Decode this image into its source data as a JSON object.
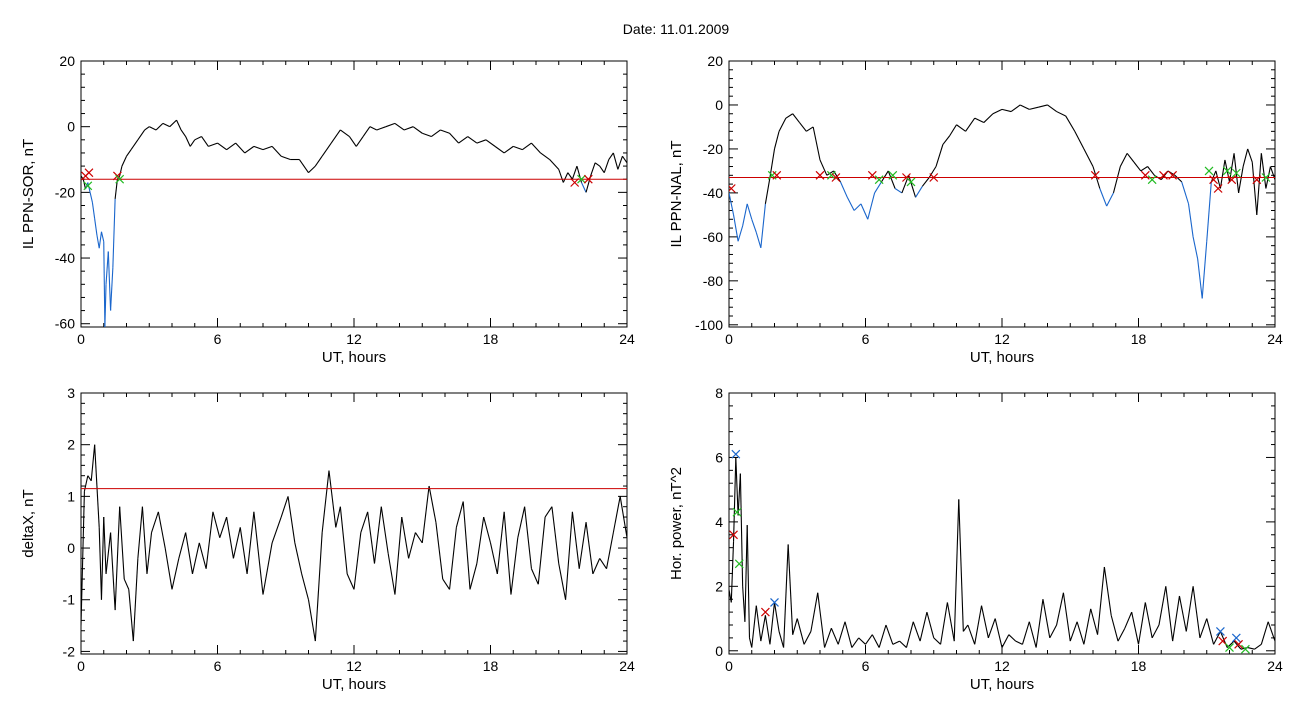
{
  "title": "Date:  11.01.2009",
  "colors": {
    "trace": "#000000",
    "threshold": "#cc0000",
    "negative_segment": "#1a66cc",
    "marker_red": "#cc0000",
    "marker_green": "#22bb22",
    "marker_blue": "#1a66cc"
  },
  "chart_data": [
    {
      "type": "line",
      "xlabel": "UT, hours",
      "ylabel": "IL PPN-SOR, nT",
      "xlim": [
        0,
        24
      ],
      "ylim": [
        -61,
        20
      ],
      "xticks": [
        0,
        6,
        12,
        18,
        24
      ],
      "yticks": [
        -60,
        -40,
        -20,
        0,
        20
      ],
      "threshold": -16,
      "series": [
        {
          "x": [
            0,
            0.1,
            0.2,
            0.3,
            0.4,
            0.5,
            0.6,
            0.7,
            0.8,
            0.9,
            1.0,
            1.05,
            1.1,
            1.2,
            1.3,
            1.4,
            1.5,
            1.6,
            1.7,
            1.8,
            2.0,
            2.2,
            2.5,
            2.8,
            3.0,
            3.3,
            3.6,
            3.9,
            4.2,
            4.4,
            4.6,
            4.8,
            5.0,
            5.3,
            5.6,
            6.0,
            6.4,
            6.8,
            7.2,
            7.6,
            8.0,
            8.4,
            8.8,
            9.2,
            9.6,
            10.0,
            10.3,
            10.6,
            11.0,
            11.4,
            11.8,
            12.1,
            12.4,
            12.7,
            13.0,
            13.4,
            13.8,
            14.2,
            14.6,
            15.0,
            15.4,
            15.8,
            16.2,
            16.6,
            17.0,
            17.4,
            17.8,
            18.2,
            18.6,
            19.0,
            19.4,
            19.8,
            20.2,
            20.6,
            21.0,
            21.2,
            21.4,
            21.6,
            21.8,
            22.0,
            22.2,
            22.4,
            22.6,
            22.8,
            23.0,
            23.2,
            23.4,
            23.6,
            23.8,
            24.0
          ],
          "y": [
            -15,
            -16,
            -19,
            -17,
            -20,
            -23,
            -28,
            -33,
            -37,
            -32,
            -35,
            -61,
            -48,
            -38,
            -56,
            -43,
            -22,
            -16,
            -15,
            -12,
            -9,
            -7,
            -4,
            -1,
            0,
            -1,
            1,
            0,
            2,
            -1,
            -3,
            -6,
            -4,
            -3,
            -6,
            -5,
            -7,
            -5,
            -8,
            -6,
            -7,
            -6,
            -9,
            -10,
            -10,
            -14,
            -12,
            -9,
            -5,
            -1,
            -3,
            -6,
            -3,
            0,
            -1,
            0,
            1,
            -1,
            0,
            -2,
            -3,
            -1,
            -2,
            -5,
            -3,
            -5,
            -4,
            -6,
            -8,
            -6,
            -7,
            -5,
            -8,
            -10,
            -13,
            -17,
            -14,
            -16,
            -12,
            -17,
            -20,
            -15,
            -11,
            -12,
            -14,
            -10,
            -8,
            -13,
            -9,
            -11
          ]
        }
      ],
      "markers": [
        {
          "x": 0.2,
          "y": -15,
          "color": "red"
        },
        {
          "x": 0.35,
          "y": -14,
          "color": "red"
        },
        {
          "x": 0.3,
          "y": -18,
          "color": "green"
        },
        {
          "x": 1.6,
          "y": -15,
          "color": "red"
        },
        {
          "x": 1.7,
          "y": -16,
          "color": "green"
        },
        {
          "x": 21.7,
          "y": -17,
          "color": "red"
        },
        {
          "x": 22.0,
          "y": -16,
          "color": "green"
        },
        {
          "x": 22.3,
          "y": -16,
          "color": "red"
        }
      ]
    },
    {
      "type": "line",
      "xlabel": "UT, hours",
      "ylabel": "IL PPN-NAL, nT",
      "xlim": [
        0,
        24
      ],
      "ylim": [
        -101,
        20
      ],
      "xticks": [
        0,
        6,
        12,
        18,
        24
      ],
      "yticks": [
        -100,
        -80,
        -60,
        -40,
        -20,
        0,
        20
      ],
      "threshold": -33,
      "series": [
        {
          "x": [
            0,
            0.2,
            0.4,
            0.6,
            0.8,
            1.0,
            1.2,
            1.4,
            1.6,
            1.8,
            2.0,
            2.2,
            2.5,
            2.8,
            3.1,
            3.4,
            3.7,
            4.0,
            4.3,
            4.6,
            4.9,
            5.2,
            5.5,
            5.8,
            6.1,
            6.4,
            6.7,
            7.0,
            7.3,
            7.6,
            7.9,
            8.2,
            8.5,
            8.8,
            9.1,
            9.4,
            9.7,
            10.0,
            10.4,
            10.8,
            11.2,
            11.6,
            12.0,
            12.4,
            12.8,
            13.2,
            13.6,
            14.0,
            14.4,
            14.8,
            15.2,
            15.6,
            16.0,
            16.3,
            16.6,
            16.9,
            17.2,
            17.5,
            17.8,
            18.1,
            18.4,
            18.7,
            19.0,
            19.3,
            19.6,
            19.9,
            20.2,
            20.4,
            20.6,
            20.8,
            21.0,
            21.2,
            21.4,
            21.6,
            21.8,
            22.0,
            22.2,
            22.4,
            22.6,
            22.8,
            23.0,
            23.2,
            23.4,
            23.6,
            23.8,
            24.0
          ],
          "y": [
            -40,
            -50,
            -62,
            -55,
            -45,
            -52,
            -58,
            -65,
            -45,
            -33,
            -20,
            -12,
            -6,
            -4,
            -8,
            -12,
            -10,
            -25,
            -32,
            -30,
            -35,
            -42,
            -48,
            -45,
            -52,
            -40,
            -35,
            -30,
            -38,
            -40,
            -32,
            -42,
            -37,
            -33,
            -28,
            -18,
            -14,
            -9,
            -12,
            -6,
            -8,
            -4,
            -2,
            -3,
            0,
            -2,
            -1,
            0,
            -3,
            -5,
            -12,
            -20,
            -28,
            -38,
            -46,
            -40,
            -28,
            -22,
            -26,
            -30,
            -28,
            -32,
            -34,
            -30,
            -32,
            -35,
            -45,
            -60,
            -70,
            -88,
            -62,
            -35,
            -30,
            -38,
            -25,
            -35,
            -22,
            -40,
            -28,
            -20,
            -26,
            -50,
            -22,
            -38,
            -28,
            -34
          ]
        }
      ],
      "markers": [
        {
          "x": 0.1,
          "y": -38,
          "color": "red"
        },
        {
          "x": 1.9,
          "y": -32,
          "color": "green"
        },
        {
          "x": 2.1,
          "y": -32,
          "color": "red"
        },
        {
          "x": 4.0,
          "y": -32,
          "color": "red"
        },
        {
          "x": 4.5,
          "y": -32,
          "color": "green"
        },
        {
          "x": 4.7,
          "y": -33,
          "color": "red"
        },
        {
          "x": 6.3,
          "y": -32,
          "color": "red"
        },
        {
          "x": 6.6,
          "y": -34,
          "color": "green"
        },
        {
          "x": 7.2,
          "y": -32,
          "color": "green"
        },
        {
          "x": 7.8,
          "y": -33,
          "color": "red"
        },
        {
          "x": 8.0,
          "y": -35,
          "color": "green"
        },
        {
          "x": 9.0,
          "y": -33,
          "color": "red"
        },
        {
          "x": 16.1,
          "y": -32,
          "color": "red"
        },
        {
          "x": 18.3,
          "y": -32,
          "color": "red"
        },
        {
          "x": 18.6,
          "y": -34,
          "color": "green"
        },
        {
          "x": 19.1,
          "y": -32,
          "color": "red"
        },
        {
          "x": 19.5,
          "y": -32,
          "color": "red"
        },
        {
          "x": 21.1,
          "y": -30,
          "color": "green"
        },
        {
          "x": 21.3,
          "y": -34,
          "color": "red"
        },
        {
          "x": 21.5,
          "y": -38,
          "color": "red"
        },
        {
          "x": 21.9,
          "y": -30,
          "color": "green"
        },
        {
          "x": 22.1,
          "y": -34,
          "color": "red"
        },
        {
          "x": 22.3,
          "y": -31,
          "color": "green"
        },
        {
          "x": 23.2,
          "y": -34,
          "color": "red"
        },
        {
          "x": 23.6,
          "y": -33,
          "color": "green"
        }
      ]
    },
    {
      "type": "line",
      "xlabel": "UT, hours",
      "ylabel": "deltaX, nT",
      "xlim": [
        0,
        24
      ],
      "ylim": [
        -2.05,
        3
      ],
      "xticks": [
        0,
        6,
        12,
        18,
        24
      ],
      "yticks": [
        -2,
        -1,
        0,
        1,
        2,
        3
      ],
      "threshold": 1.15,
      "series": [
        {
          "x": [
            0,
            0.15,
            0.3,
            0.45,
            0.6,
            0.8,
            0.9,
            1.0,
            1.1,
            1.3,
            1.5,
            1.7,
            1.9,
            2.1,
            2.3,
            2.5,
            2.7,
            2.9,
            3.1,
            3.4,
            3.7,
            4.0,
            4.3,
            4.6,
            4.9,
            5.2,
            5.5,
            5.8,
            6.1,
            6.4,
            6.7,
            7.0,
            7.3,
            7.6,
            8.0,
            8.4,
            8.8,
            9.1,
            9.4,
            9.7,
            10.0,
            10.3,
            10.6,
            10.9,
            11.2,
            11.4,
            11.7,
            12.0,
            12.3,
            12.6,
            12.9,
            13.2,
            13.5,
            13.8,
            14.1,
            14.4,
            14.7,
            15.0,
            15.3,
            15.6,
            15.9,
            16.2,
            16.5,
            16.8,
            17.1,
            17.4,
            17.7,
            18.0,
            18.3,
            18.6,
            18.9,
            19.2,
            19.5,
            19.8,
            20.1,
            20.4,
            20.7,
            21.0,
            21.3,
            21.6,
            21.9,
            22.2,
            22.5,
            22.8,
            23.1,
            23.4,
            23.7,
            24.0
          ],
          "y": [
            -1.5,
            1.1,
            1.4,
            1.3,
            2.0,
            0.4,
            -1.0,
            0.6,
            -0.5,
            0.3,
            -1.2,
            0.8,
            -0.6,
            -0.8,
            -1.8,
            -0.2,
            0.8,
            -0.5,
            0.3,
            0.7,
            0.0,
            -0.8,
            -0.2,
            0.3,
            -0.5,
            0.1,
            -0.4,
            0.7,
            0.2,
            0.6,
            -0.2,
            0.4,
            -0.5,
            0.7,
            -0.9,
            0.1,
            0.6,
            1.0,
            0.1,
            -0.5,
            -1.0,
            -1.8,
            0.3,
            1.5,
            0.4,
            0.8,
            -0.5,
            -0.8,
            0.3,
            0.7,
            -0.3,
            0.8,
            -0.1,
            -0.9,
            0.6,
            -0.2,
            0.3,
            0.1,
            1.2,
            0.5,
            -0.6,
            -0.8,
            0.4,
            0.9,
            -0.8,
            -0.3,
            0.6,
            0.1,
            -0.5,
            0.7,
            -0.9,
            0.2,
            0.8,
            -0.4,
            -0.7,
            0.6,
            0.8,
            -0.3,
            -1.0,
            0.7,
            -0.4,
            0.5,
            -0.5,
            -0.2,
            -0.4,
            0.3,
            1.0,
            0.2
          ]
        }
      ],
      "markers": []
    },
    {
      "type": "line",
      "xlabel": "UT, hours",
      "ylabel": "Hor. power, nT^2",
      "xlim": [
        0,
        24
      ],
      "ylim": [
        -0.1,
        8
      ],
      "xticks": [
        0,
        6,
        12,
        18,
        24
      ],
      "yticks": [
        0,
        2,
        4,
        6,
        8
      ],
      "threshold": null,
      "series": [
        {
          "x": [
            0,
            0.1,
            0.2,
            0.3,
            0.4,
            0.5,
            0.6,
            0.7,
            0.8,
            0.9,
            1.0,
            1.2,
            1.4,
            1.6,
            1.8,
            2.0,
            2.2,
            2.4,
            2.6,
            2.8,
            3.0,
            3.3,
            3.6,
            3.9,
            4.2,
            4.5,
            4.8,
            5.1,
            5.4,
            5.7,
            6.0,
            6.3,
            6.6,
            6.9,
            7.2,
            7.5,
            7.8,
            8.1,
            8.4,
            8.7,
            9.0,
            9.3,
            9.6,
            9.9,
            10.1,
            10.3,
            10.5,
            10.8,
            11.1,
            11.4,
            11.7,
            12.0,
            12.3,
            12.6,
            12.9,
            13.2,
            13.5,
            13.8,
            14.1,
            14.4,
            14.7,
            15.0,
            15.3,
            15.6,
            15.9,
            16.2,
            16.5,
            16.8,
            17.1,
            17.4,
            17.7,
            18.0,
            18.3,
            18.6,
            18.9,
            19.2,
            19.5,
            19.8,
            20.1,
            20.4,
            20.7,
            21.0,
            21.3,
            21.6,
            21.9,
            22.2,
            22.5,
            22.8,
            23.1,
            23.4,
            23.7,
            24.0
          ],
          "y": [
            1.9,
            1.5,
            3.4,
            6.0,
            4.2,
            5.5,
            2.0,
            0.9,
            3.9,
            0.4,
            0.1,
            1.4,
            0.3,
            1.1,
            0.2,
            1.5,
            0.6,
            0.1,
            3.3,
            0.5,
            1.0,
            0.2,
            0.6,
            1.8,
            0.1,
            0.7,
            0.2,
            0.9,
            0.1,
            0.4,
            0.2,
            0.5,
            0.1,
            0.8,
            0.2,
            0.3,
            0.1,
            0.9,
            0.3,
            1.2,
            0.4,
            0.2,
            1.5,
            0.3,
            4.7,
            0.6,
            0.8,
            0.2,
            1.4,
            0.4,
            1.0,
            0.1,
            0.5,
            0.3,
            0.2,
            0.9,
            0.1,
            1.6,
            0.4,
            0.8,
            1.8,
            0.3,
            0.9,
            0.2,
            1.3,
            0.5,
            2.6,
            1.1,
            0.3,
            0.7,
            1.2,
            0.2,
            1.5,
            0.4,
            0.8,
            2.0,
            0.3,
            1.7,
            0.6,
            2.0,
            0.4,
            1.0,
            0.2,
            0.6,
            0.1,
            0.3,
            0.05,
            0.1,
            0.05,
            0.2,
            0.9,
            0.3
          ]
        }
      ],
      "markers": [
        {
          "x": 0.2,
          "y": 3.6,
          "color": "red"
        },
        {
          "x": 0.3,
          "y": 6.1,
          "color": "blue"
        },
        {
          "x": 0.35,
          "y": 4.3,
          "color": "green"
        },
        {
          "x": 0.45,
          "y": 2.7,
          "color": "green"
        },
        {
          "x": 1.6,
          "y": 1.2,
          "color": "red"
        },
        {
          "x": 2.0,
          "y": 1.5,
          "color": "blue"
        },
        {
          "x": 21.6,
          "y": 0.6,
          "color": "blue"
        },
        {
          "x": 21.7,
          "y": 0.3,
          "color": "red"
        },
        {
          "x": 22.0,
          "y": 0.1,
          "color": "green"
        },
        {
          "x": 22.3,
          "y": 0.4,
          "color": "blue"
        },
        {
          "x": 22.4,
          "y": 0.2,
          "color": "red"
        },
        {
          "x": 22.7,
          "y": 0.05,
          "color": "green"
        }
      ]
    }
  ]
}
